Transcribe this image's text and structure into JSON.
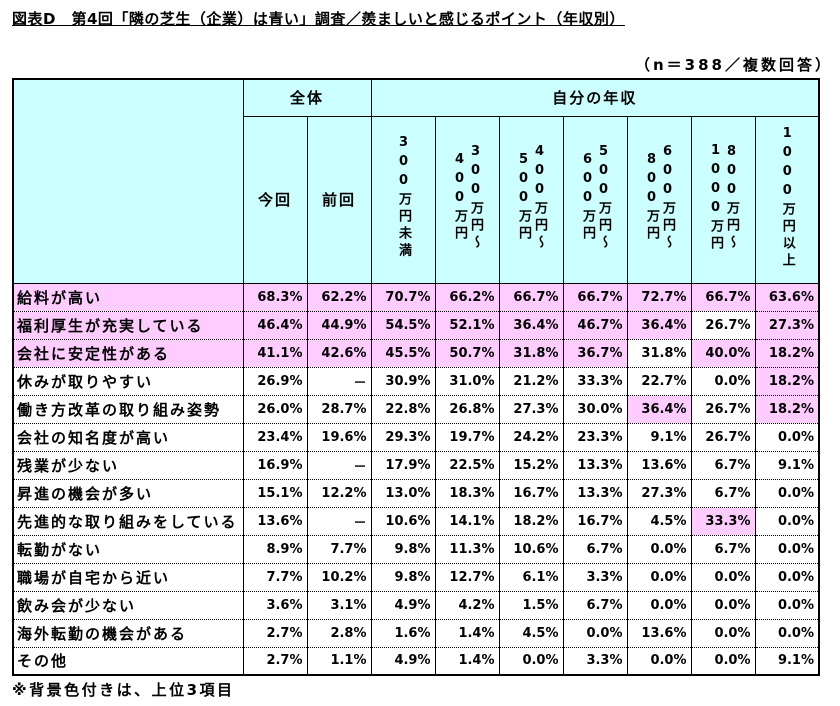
{
  "chart_data": {
    "type": "table",
    "title": "図表D　第4回「隣の芝生（企業）は青い」調査／羨ましいと感じるポイント（年収別）",
    "note": "（n＝388／複数回答）",
    "footnote": "※背景色付きは、上位3項目",
    "unit": "%",
    "missing_mark": "－",
    "groups": [
      {
        "name": "全体",
        "columns": [
          {
            "lines": [
              "今回"
            ]
          },
          {
            "lines": [
              "前回"
            ]
          }
        ]
      },
      {
        "name": "自分の年収",
        "columns": [
          {
            "lines": [
              "300万円未満"
            ]
          },
          {
            "lines": [
              "300万円～",
              "400万円"
            ]
          },
          {
            "lines": [
              "400万円～",
              "500万円"
            ]
          },
          {
            "lines": [
              "500万円～",
              "600万円"
            ]
          },
          {
            "lines": [
              "600万円～",
              "800万円"
            ]
          },
          {
            "lines": [
              "800万円～",
              "1000万円"
            ]
          },
          {
            "lines": [
              "1000万円以上"
            ]
          }
        ]
      }
    ],
    "rows": [
      {
        "label": "給料が高い",
        "label_highlight": true,
        "values": [
          68.3,
          62.2,
          70.7,
          66.2,
          66.7,
          66.7,
          72.7,
          66.7,
          63.6
        ],
        "highlight": [
          true,
          true,
          true,
          true,
          true,
          true,
          true,
          true,
          true
        ]
      },
      {
        "label": "福利厚生が充実している",
        "label_highlight": true,
        "values": [
          46.4,
          44.9,
          54.5,
          52.1,
          36.4,
          46.7,
          36.4,
          26.7,
          27.3
        ],
        "highlight": [
          true,
          true,
          true,
          true,
          true,
          true,
          true,
          false,
          true
        ]
      },
      {
        "label": "会社に安定性がある",
        "label_highlight": true,
        "values": [
          41.1,
          42.6,
          45.5,
          50.7,
          31.8,
          36.7,
          31.8,
          40.0,
          18.2
        ],
        "highlight": [
          true,
          true,
          true,
          true,
          true,
          true,
          false,
          true,
          true
        ]
      },
      {
        "label": "休みが取りやすい",
        "values": [
          26.9,
          null,
          30.9,
          31.0,
          21.2,
          33.3,
          22.7,
          0.0,
          18.2
        ],
        "highlight": [
          false,
          false,
          false,
          false,
          false,
          false,
          false,
          false,
          true
        ]
      },
      {
        "label": "働き方改革の取り組み姿勢",
        "values": [
          26.0,
          28.7,
          22.8,
          26.8,
          27.3,
          30.0,
          36.4,
          26.7,
          18.2
        ],
        "highlight": [
          false,
          false,
          false,
          false,
          false,
          false,
          true,
          false,
          true
        ]
      },
      {
        "label": "会社の知名度が高い",
        "values": [
          23.4,
          19.6,
          29.3,
          19.7,
          24.2,
          23.3,
          9.1,
          26.7,
          0.0
        ]
      },
      {
        "label": "残業が少ない",
        "values": [
          16.9,
          null,
          17.9,
          22.5,
          15.2,
          13.3,
          13.6,
          6.7,
          9.1
        ]
      },
      {
        "label": "昇進の機会が多い",
        "values": [
          15.1,
          12.2,
          13.0,
          18.3,
          16.7,
          13.3,
          27.3,
          6.7,
          0.0
        ]
      },
      {
        "label": "先進的な取り組みをしている",
        "values": [
          13.6,
          null,
          10.6,
          14.1,
          18.2,
          16.7,
          4.5,
          33.3,
          0.0
        ],
        "highlight": [
          false,
          false,
          false,
          false,
          false,
          false,
          false,
          true,
          false
        ]
      },
      {
        "label": "転勤がない",
        "values": [
          8.9,
          7.7,
          9.8,
          11.3,
          10.6,
          6.7,
          0.0,
          6.7,
          0.0
        ]
      },
      {
        "label": "職場が自宅から近い",
        "values": [
          7.7,
          10.2,
          9.8,
          12.7,
          6.1,
          3.3,
          0.0,
          0.0,
          0.0
        ]
      },
      {
        "label": "飲み会が少ない",
        "values": [
          3.6,
          3.1,
          4.9,
          4.2,
          1.5,
          6.7,
          0.0,
          0.0,
          0.0
        ]
      },
      {
        "label": "海外転勤の機会がある",
        "values": [
          2.7,
          2.8,
          1.6,
          1.4,
          4.5,
          0.0,
          13.6,
          0.0,
          0.0
        ]
      },
      {
        "label": "その他",
        "values": [
          2.7,
          1.1,
          4.9,
          1.4,
          0.0,
          3.3,
          0.0,
          0.0,
          9.1
        ]
      }
    ]
  },
  "colors": {
    "header_bg": "#CCFFFF",
    "highlight_bg": "#FFCCFF",
    "text": "#000000",
    "border": "#000000"
  }
}
